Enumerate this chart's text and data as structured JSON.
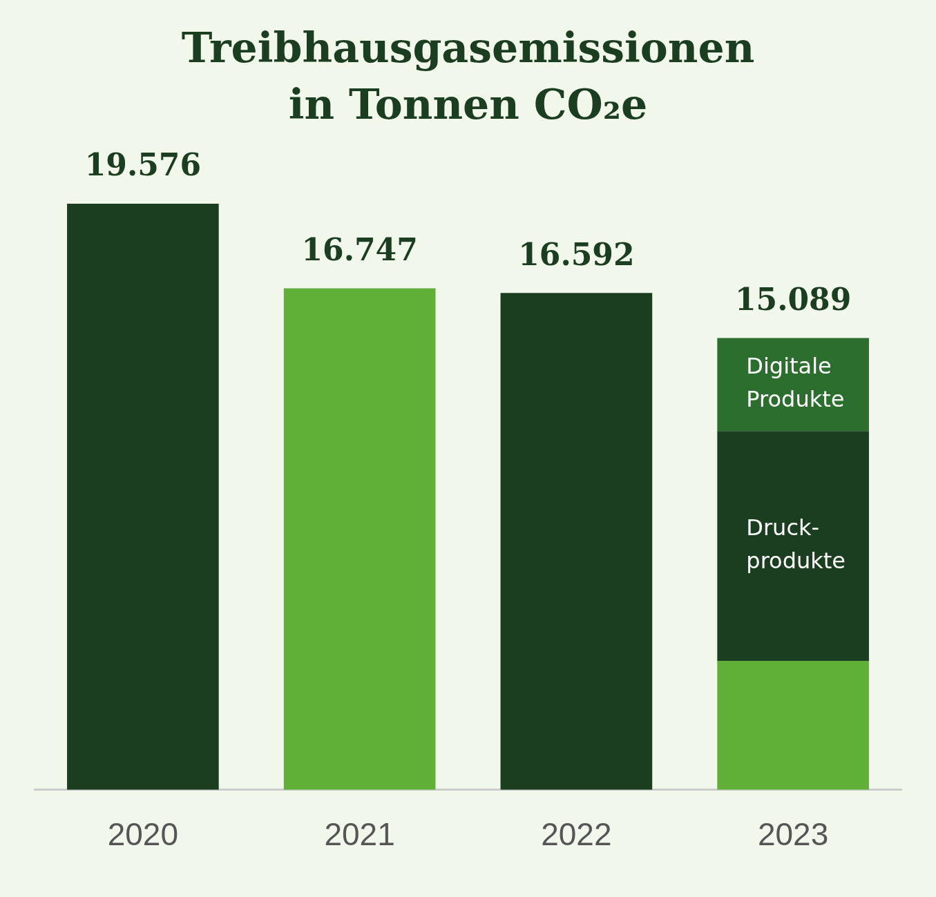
{
  "chart_data": {
    "type": "bar",
    "title": "Treibhausgasemissionen\nin Tonnen CO₂e",
    "categories": [
      "2020",
      "2021",
      "2022",
      "2023"
    ],
    "stacked": true,
    "series": [
      {
        "colors": [
          "#1b3d20",
          "#60b038",
          "#1b3d20",
          "#60b038"
        ],
        "values": [
          19576,
          16747,
          16592,
          4310
        ],
        "value_labels": [
          "19.576",
          "16.747",
          "16.592",
          null
        ]
      },
      {
        "name": "Druck-\nprodukte",
        "color": "#1b3d20",
        "values": [
          null,
          null,
          null,
          7670
        ]
      },
      {
        "name": "Digitale\nProdukte",
        "color": "#2b6e2e",
        "values": [
          null,
          null,
          null,
          3109
        ]
      }
    ],
    "totals": [
      null,
      null,
      null,
      "15.089"
    ]
  }
}
